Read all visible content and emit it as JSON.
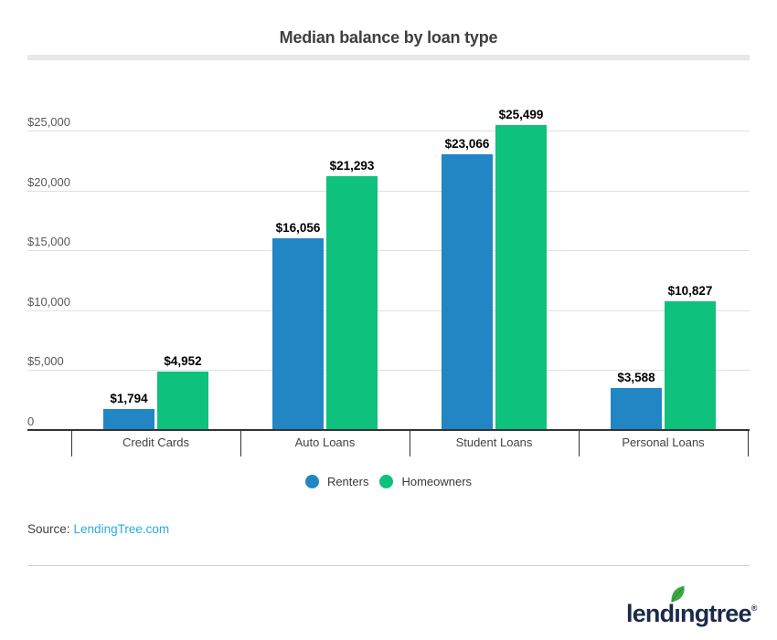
{
  "chart_data": {
    "type": "bar",
    "title": "Median balance by loan type",
    "categories": [
      "Credit Cards",
      "Auto Loans",
      "Student Loans",
      "Personal Loans"
    ],
    "series": [
      {
        "name": "Renters",
        "color": "#2186c3",
        "values": [
          1794,
          16056,
          23066,
          3588
        ],
        "labels": [
          "$1,794",
          "$16,056",
          "$23,066",
          "$3,588"
        ]
      },
      {
        "name": "Homeowners",
        "color": "#0ec17c",
        "values": [
          4952,
          21293,
          25499,
          10827
        ],
        "labels": [
          "$4,952",
          "$21,293",
          "$25,499",
          "$10,827"
        ]
      }
    ],
    "y_ticks": [
      {
        "value": 0,
        "label": "0"
      },
      {
        "value": 5000,
        "label": "$5,000"
      },
      {
        "value": 10000,
        "label": "$10,000"
      },
      {
        "value": 15000,
        "label": "$15,000"
      },
      {
        "value": 20000,
        "label": "$20,000"
      },
      {
        "value": 25000,
        "label": "$25,000"
      }
    ],
    "ylim": [
      0,
      25600
    ],
    "xlabel": "",
    "ylabel": "",
    "grid": true,
    "legend_position": "bottom"
  },
  "source": {
    "label": "Source:",
    "link_text": "LendingTree.com",
    "link_color": "#29abe2"
  },
  "logo": {
    "text": "lendingtree",
    "reg_mark": "®",
    "wordmark_color": "#1b2a49",
    "leaf_color": "#3fa944"
  },
  "colors": {
    "grid": "#e0e0e0",
    "axis": "#333333",
    "tick_label": "#58595b",
    "value_label": "#000000",
    "title": "#3f3f3f",
    "title_bar": "#e8e8e8",
    "divider": "#cfcfcf"
  }
}
